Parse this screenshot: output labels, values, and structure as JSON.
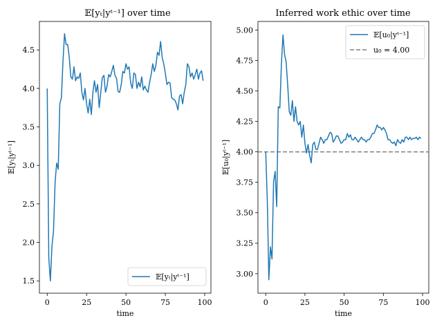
{
  "chart_data": [
    {
      "type": "line",
      "title": "𝔼[yₜ|yᵗ⁻¹] over time",
      "xlabel": "time",
      "ylabel": "𝔼[yₜ|yᵗ⁻¹]",
      "xlim": [
        -4.95,
        103.95
      ],
      "ylim": [
        1.34,
        4.87
      ],
      "xticks": [
        0,
        25,
        50,
        75,
        100
      ],
      "yticks": [
        1.5,
        2.0,
        2.5,
        3.0,
        3.5,
        4.0,
        4.5
      ],
      "xtick_labels": [
        "0",
        "25",
        "50",
        "75",
        "100"
      ],
      "ytick_labels": [
        "1.5",
        "2.0",
        "2.5",
        "3.0",
        "3.5",
        "4.0",
        "4.5"
      ],
      "legend_position": "lower-right",
      "series": [
        {
          "name": "𝔼[yₜ|yᵗ⁻¹]",
          "color": "#1f77b4",
          "x": [
            0,
            1,
            2,
            3,
            4,
            5,
            6,
            7,
            8,
            9,
            10,
            11,
            12,
            13,
            14,
            15,
            16,
            17,
            18,
            19,
            20,
            21,
            22,
            23,
            24,
            25,
            26,
            27,
            28,
            29,
            30,
            31,
            32,
            33,
            34,
            35,
            36,
            37,
            38,
            39,
            40,
            41,
            42,
            43,
            44,
            45,
            46,
            47,
            48,
            49,
            50,
            51,
            52,
            53,
            54,
            55,
            56,
            57,
            58,
            59,
            60,
            61,
            62,
            63,
            64,
            65,
            66,
            67,
            68,
            69,
            70,
            71,
            72,
            73,
            74,
            75,
            76,
            77,
            78,
            79,
            80,
            81,
            82,
            83,
            84,
            85,
            86,
            87,
            88,
            89,
            90,
            91,
            92,
            93,
            94,
            95,
            96,
            97,
            98,
            99
          ],
          "y": [
            4.0,
            1.8,
            1.5,
            1.95,
            2.15,
            2.78,
            3.03,
            2.95,
            3.8,
            3.88,
            4.35,
            4.71,
            4.57,
            4.57,
            4.4,
            4.15,
            4.12,
            4.28,
            4.1,
            4.15,
            4.13,
            4.2,
            3.95,
            3.85,
            4.0,
            3.8,
            3.68,
            3.86,
            3.66,
            3.95,
            4.1,
            3.95,
            4.05,
            3.75,
            3.95,
            4.14,
            4.17,
            3.95,
            4.03,
            4.18,
            4.15,
            4.22,
            4.3,
            4.17,
            4.13,
            3.96,
            3.95,
            4.05,
            4.22,
            4.2,
            4.32,
            4.25,
            4.28,
            4.07,
            4.0,
            4.2,
            4.18,
            4.0,
            4.08,
            4.02,
            4.15,
            3.98,
            4.03,
            3.98,
            3.95,
            4.08,
            4.18,
            4.32,
            4.22,
            4.3,
            4.47,
            4.43,
            4.61,
            4.4,
            4.32,
            4.2,
            4.05,
            4.08,
            4.07,
            3.88,
            3.86,
            3.85,
            3.8,
            3.72,
            3.9,
            3.92,
            3.8,
            3.95,
            4.05,
            4.32,
            4.28,
            4.15,
            4.2,
            4.12,
            4.18,
            4.25,
            4.12,
            4.2,
            4.23,
            4.1
          ]
        }
      ]
    },
    {
      "type": "line",
      "title": "Inferred work ethic over time",
      "xlabel": "time",
      "ylabel": "𝔼[u₀|yᵗ⁻¹]",
      "xlim": [
        -4.95,
        103.95
      ],
      "ylim": [
        2.84,
        5.07
      ],
      "xticks": [
        0,
        25,
        50,
        75,
        100
      ],
      "yticks": [
        3.0,
        3.25,
        3.5,
        3.75,
        4.0,
        4.25,
        4.5,
        4.75,
        5.0
      ],
      "xtick_labels": [
        "0",
        "25",
        "50",
        "75",
        "100"
      ],
      "ytick_labels": [
        "3.00",
        "3.25",
        "3.50",
        "3.75",
        "4.00",
        "4.25",
        "4.50",
        "4.75",
        "5.00"
      ],
      "legend_position": "upper-right",
      "series": [
        {
          "name": "𝔼[u₀|yᵗ⁻¹]",
          "color": "#1f77b4",
          "x": [
            0,
            1,
            2,
            3,
            4,
            5,
            6,
            7,
            8,
            9,
            10,
            11,
            12,
            13,
            14,
            15,
            16,
            17,
            18,
            19,
            20,
            21,
            22,
            23,
            24,
            25,
            26,
            27,
            28,
            29,
            30,
            31,
            32,
            33,
            34,
            35,
            36,
            37,
            38,
            39,
            40,
            41,
            42,
            43,
            44,
            45,
            46,
            47,
            48,
            49,
            50,
            51,
            52,
            53,
            54,
            55,
            56,
            57,
            58,
            59,
            60,
            61,
            62,
            63,
            64,
            65,
            66,
            67,
            68,
            69,
            70,
            71,
            72,
            73,
            74,
            75,
            76,
            77,
            78,
            79,
            80,
            81,
            82,
            83,
            84,
            85,
            86,
            87,
            88,
            89,
            90,
            91,
            92,
            93,
            94,
            95,
            96,
            97,
            98,
            99
          ],
          "y": [
            4.0,
            3.6,
            2.95,
            3.22,
            3.12,
            3.75,
            3.84,
            3.55,
            4.37,
            4.36,
            4.72,
            4.96,
            4.8,
            4.74,
            4.55,
            4.33,
            4.3,
            4.42,
            4.25,
            4.37,
            4.25,
            4.22,
            4.25,
            4.12,
            4.22,
            4.07,
            3.99,
            4.06,
            3.97,
            3.91,
            4.06,
            4.08,
            4.02,
            4.02,
            4.07,
            4.12,
            4.1,
            4.07,
            4.1,
            4.1,
            4.13,
            4.16,
            4.15,
            4.08,
            4.1,
            4.13,
            4.13,
            4.1,
            4.07,
            4.08,
            4.1,
            4.1,
            4.15,
            4.12,
            4.14,
            4.1,
            4.1,
            4.12,
            4.1,
            4.08,
            4.1,
            4.12,
            4.1,
            4.1,
            4.08,
            4.1,
            4.1,
            4.12,
            4.15,
            4.15,
            4.18,
            4.22,
            4.2,
            4.2,
            4.18,
            4.2,
            4.18,
            4.15,
            4.1,
            4.1,
            4.08,
            4.07,
            4.08,
            4.05,
            4.1,
            4.08,
            4.07,
            4.1,
            4.08,
            4.12,
            4.12,
            4.1,
            4.12,
            4.1,
            4.11,
            4.11,
            4.12,
            4.1,
            4.12,
            4.11
          ]
        },
        {
          "name": "u₀ = 4.00",
          "color": "#7f7f7f",
          "style": "dashed",
          "hline": 4.0
        }
      ]
    }
  ]
}
